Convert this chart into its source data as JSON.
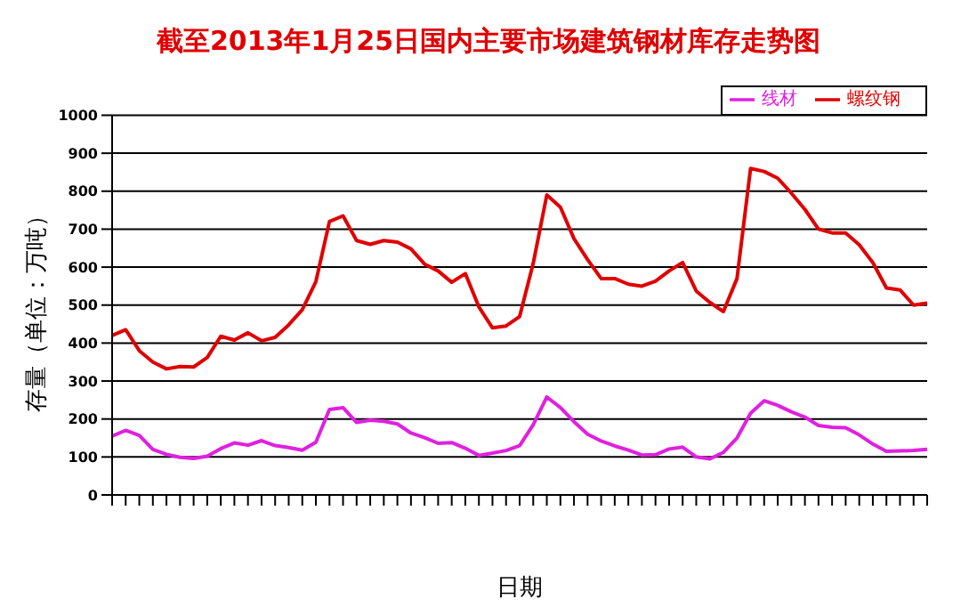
{
  "chart_data": {
    "type": "line",
    "title": "截至2013年1月25日国内主要市场建筑钢材库存走势图",
    "xlabel": "日期",
    "ylabel": "存量（单位：万吨）",
    "categories": [
      null,
      null,
      null,
      null,
      null,
      null,
      null,
      null,
      null,
      null,
      null,
      null,
      null,
      null,
      null,
      null,
      null,
      null,
      null,
      null,
      null,
      null,
      null,
      null,
      null,
      null,
      null,
      null,
      null,
      null,
      null,
      null,
      null,
      null,
      null,
      null,
      null,
      null,
      null,
      null,
      null,
      null,
      null,
      null,
      null,
      null,
      null,
      null,
      null,
      null,
      null,
      null,
      null,
      null,
      null,
      null,
      null,
      null,
      null,
      null,
      null
    ],
    "series": [
      {
        "name": "螺纹钢",
        "color": "#e00000",
        "values": [
          420,
          435,
          380,
          350,
          332,
          338,
          337,
          362,
          418,
          408,
          427,
          406,
          415,
          448,
          488,
          562,
          720,
          735,
          670,
          660,
          670,
          666,
          648,
          608,
          590,
          560,
          583,
          495,
          440,
          445,
          470,
          610,
          790,
          758,
          675,
          620,
          570,
          570,
          555,
          550,
          563,
          590,
          612,
          537,
          507,
          483,
          570,
          860,
          852,
          834,
          795,
          752,
          700,
          690,
          690,
          659,
          612,
          545,
          540,
          500,
          505
        ]
      },
      {
        "name": "线材",
        "color": "#e020e0",
        "values": [
          155,
          170,
          157,
          120,
          107,
          99,
          96,
          102,
          122,
          137,
          131,
          143,
          130,
          125,
          118,
          139,
          225,
          230,
          191,
          197,
          194,
          187,
          163,
          151,
          136,
          138,
          123,
          104,
          110,
          117,
          130,
          185,
          258,
          230,
          193,
          160,
          142,
          129,
          118,
          105,
          106,
          121,
          126,
          100,
          95,
          112,
          150,
          215,
          248,
          236,
          219,
          205,
          183,
          178,
          177,
          158,
          134,
          115,
          116,
          117,
          120
        ]
      }
    ],
    "ylim": [
      0,
      1000
    ],
    "yticks": [
      0,
      100,
      200,
      300,
      400,
      500,
      600,
      700,
      800,
      900,
      1000
    ],
    "grid": "y",
    "legend": "top right",
    "marker": "none",
    "line_style": "solid"
  }
}
